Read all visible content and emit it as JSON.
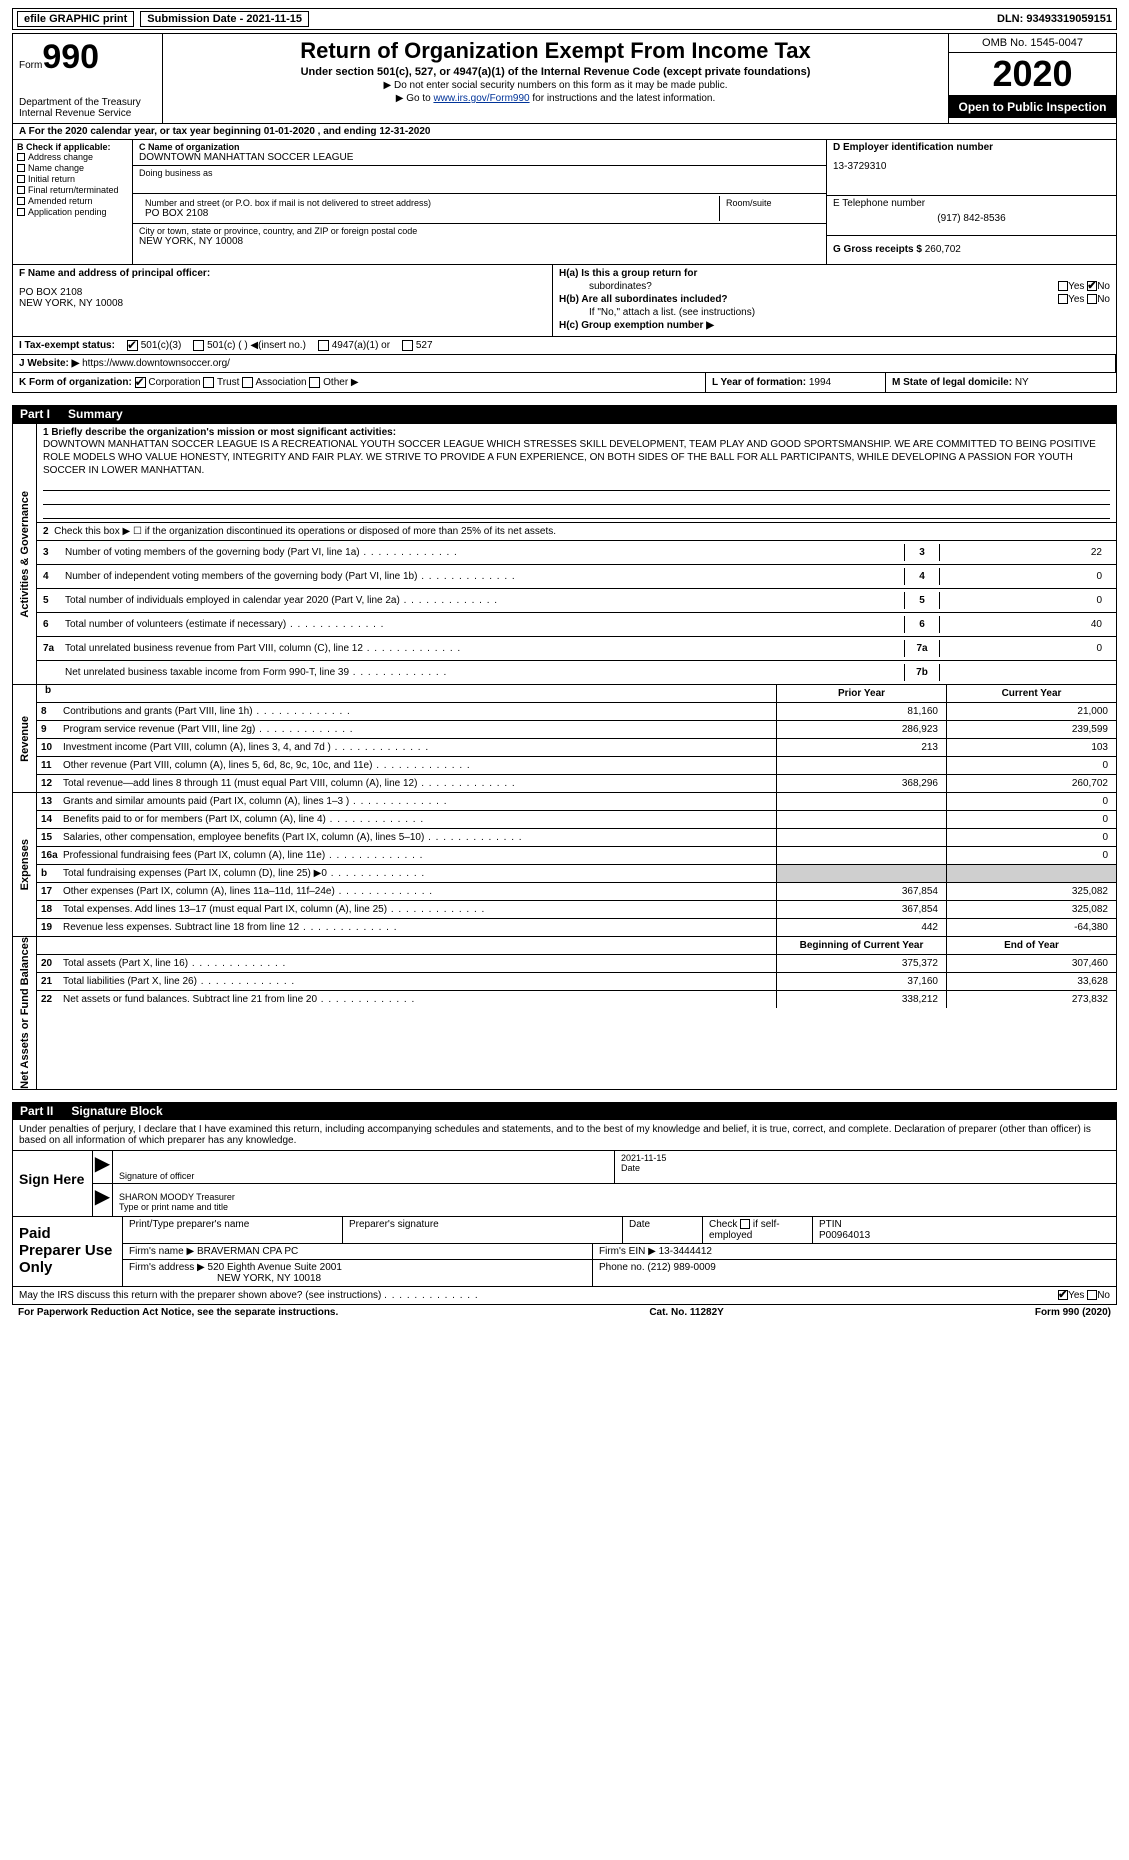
{
  "top": {
    "efile": "efile GRAPHIC print",
    "sub_label": "Submission Date - 2021-11-15",
    "dln": "DLN: 93493319059151"
  },
  "header": {
    "form": "Form",
    "form_num": "990",
    "dept": "Department of the Treasury\nInternal Revenue Service",
    "title": "Return of Organization Exempt From Income Tax",
    "sub": "Under section 501(c), 527, or 4947(a)(1) of the Internal Revenue Code (except private foundations)",
    "line1": "▶ Do not enter social security numbers on this form as it may be made public.",
    "line2_pre": "▶ Go to ",
    "line2_link": "www.irs.gov/Form990",
    "line2_post": " for instructions and the latest information.",
    "omb": "OMB No. 1545-0047",
    "year": "2020",
    "open": "Open to Public Inspection"
  },
  "row_a": "A For the 2020 calendar year, or tax year beginning 01-01-2020   , and ending 12-31-2020",
  "b": {
    "label": "B Check if applicable:",
    "items": [
      "Address change",
      "Name change",
      "Initial return",
      "Final return/terminated",
      "Amended return",
      "Application pending"
    ]
  },
  "c": {
    "name_label": "C Name of organization",
    "name": "DOWNTOWN MANHATTAN SOCCER LEAGUE",
    "dba_label": "Doing business as",
    "addr_label": "Number and street (or P.O. box if mail is not delivered to street address)",
    "addr": "PO BOX 2108",
    "room_label": "Room/suite",
    "city_label": "City or town, state or province, country, and ZIP or foreign postal code",
    "city": "NEW YORK, NY  10008"
  },
  "d": {
    "ein_label": "D Employer identification number",
    "ein": "13-3729310",
    "tel_label": "E Telephone number",
    "tel": "(917) 842-8536",
    "gross_label": "G Gross receipts $",
    "gross": "260,702"
  },
  "f": {
    "label": "F  Name and address of principal officer:",
    "line1": "PO BOX 2108",
    "line2": "NEW YORK, NY  10008"
  },
  "h": {
    "a_label": "H(a)  Is this a group return for",
    "a_sub": "subordinates?",
    "b_label": "H(b)  Are all subordinates included?",
    "b_note": "If \"No,\" attach a list. (see instructions)",
    "c_label": "H(c)  Group exemption number ▶"
  },
  "i": {
    "label": "I   Tax-exempt status:",
    "opt1": "501(c)(3)",
    "opt2": "501(c) (  ) ◀(insert no.)",
    "opt3": "4947(a)(1) or",
    "opt4": "527"
  },
  "j": {
    "label": "J  Website: ▶",
    "url": "https://www.downtownsoccer.org/"
  },
  "k": {
    "label": "K Form of organization:",
    "opts": [
      "Corporation",
      "Trust",
      "Association",
      "Other ▶"
    ],
    "l_label": "L Year of formation:",
    "l_val": "1994",
    "m_label": "M State of legal domicile:",
    "m_val": "NY"
  },
  "part1": {
    "label": "Part I",
    "title": "Summary"
  },
  "mission": "DOWNTOWN MANHATTAN SOCCER LEAGUE IS A RECREATIONAL YOUTH SOCCER LEAGUE WHICH STRESSES SKILL DEVELOPMENT, TEAM PLAY AND GOOD SPORTSMANSHIP. WE ARE COMMITTED TO BEING POSITIVE ROLE MODELS WHO VALUE HONESTY, INTEGRITY AND FAIR PLAY. WE STRIVE TO PROVIDE A FUN EXPERIENCE, ON BOTH SIDES OF THE BALL FOR ALL PARTICIPANTS, WHILE DEVELOPING A PASSION FOR YOUTH SOCCER IN LOWER MANHATTAN.",
  "gov": {
    "line1_label": "1  Briefly describe the organization's mission or most significant activities:",
    "line2": "Check this box ▶ ☐  if the organization discontinued its operations or disposed of more than 25% of its net assets.",
    "rows": [
      {
        "n": "3",
        "d": "Number of voting members of the governing body (Part VI, line 1a)",
        "r": "3",
        "v": "22"
      },
      {
        "n": "4",
        "d": "Number of independent voting members of the governing body (Part VI, line 1b)",
        "r": "4",
        "v": "0"
      },
      {
        "n": "5",
        "d": "Total number of individuals employed in calendar year 2020 (Part V, line 2a)",
        "r": "5",
        "v": "0"
      },
      {
        "n": "6",
        "d": "Total number of volunteers (estimate if necessary)",
        "r": "6",
        "v": "40"
      },
      {
        "n": "7a",
        "d": "Total unrelated business revenue from Part VIII, column (C), line 12",
        "r": "7a",
        "v": "0"
      },
      {
        "n": "",
        "d": "Net unrelated business taxable income from Form 990-T, line 39",
        "r": "7b",
        "v": ""
      }
    ]
  },
  "fin_head": {
    "prior": "Prior Year",
    "current": "Current Year",
    "begin": "Beginning of Current Year",
    "end": "End of Year"
  },
  "revenue": [
    {
      "n": "8",
      "d": "Contributions and grants (Part VIII, line 1h)",
      "p": "81,160",
      "c": "21,000"
    },
    {
      "n": "9",
      "d": "Program service revenue (Part VIII, line 2g)",
      "p": "286,923",
      "c": "239,599"
    },
    {
      "n": "10",
      "d": "Investment income (Part VIII, column (A), lines 3, 4, and 7d )",
      "p": "213",
      "c": "103"
    },
    {
      "n": "11",
      "d": "Other revenue (Part VIII, column (A), lines 5, 6d, 8c, 9c, 10c, and 11e)",
      "p": "",
      "c": "0"
    },
    {
      "n": "12",
      "d": "Total revenue—add lines 8 through 11 (must equal Part VIII, column (A), line 12)",
      "p": "368,296",
      "c": "260,702"
    }
  ],
  "expenses": [
    {
      "n": "13",
      "d": "Grants and similar amounts paid (Part IX, column (A), lines 1–3 )",
      "p": "",
      "c": "0"
    },
    {
      "n": "14",
      "d": "Benefits paid to or for members (Part IX, column (A), line 4)",
      "p": "",
      "c": "0"
    },
    {
      "n": "15",
      "d": "Salaries, other compensation, employee benefits (Part IX, column (A), lines 5–10)",
      "p": "",
      "c": "0"
    },
    {
      "n": "16a",
      "d": "Professional fundraising fees (Part IX, column (A), line 11e)",
      "p": "",
      "c": "0"
    },
    {
      "n": "b",
      "d": "Total fundraising expenses (Part IX, column (D), line 25) ▶0",
      "p": "shade",
      "c": "shade"
    },
    {
      "n": "17",
      "d": "Other expenses (Part IX, column (A), lines 11a–11d, 11f–24e)",
      "p": "367,854",
      "c": "325,082"
    },
    {
      "n": "18",
      "d": "Total expenses. Add lines 13–17 (must equal Part IX, column (A), line 25)",
      "p": "367,854",
      "c": "325,082"
    },
    {
      "n": "19",
      "d": "Revenue less expenses. Subtract line 18 from line 12",
      "p": "442",
      "c": "-64,380"
    }
  ],
  "netassets": [
    {
      "n": "20",
      "d": "Total assets (Part X, line 16)",
      "p": "375,372",
      "c": "307,460"
    },
    {
      "n": "21",
      "d": "Total liabilities (Part X, line 26)",
      "p": "37,160",
      "c": "33,628"
    },
    {
      "n": "22",
      "d": "Net assets or fund balances. Subtract line 21 from line 20",
      "p": "338,212",
      "c": "273,832"
    }
  ],
  "part2": {
    "label": "Part II",
    "title": "Signature Block"
  },
  "sig": {
    "declare": "Under penalties of perjury, I declare that I have examined this return, including accompanying schedules and statements, and to the best of my knowledge and belief, it is true, correct, and complete. Declaration of preparer (other than officer) is based on all information of which preparer has any knowledge.",
    "sign_here": "Sign Here",
    "sig_officer": "Signature of officer",
    "date_label": "Date",
    "date": "2021-11-15",
    "name": "SHARON MOODY Treasurer",
    "type_label": "Type or print name and title"
  },
  "prep": {
    "label": "Paid Preparer Use Only",
    "h1": "Print/Type preparer's name",
    "h2": "Preparer's signature",
    "h3": "Date",
    "h4_a": "Check",
    "h4_b": "if self-employed",
    "h5": "PTIN",
    "ptin": "P00964013",
    "firm_name_label": "Firm's name    ▶",
    "firm_name": "BRAVERMAN CPA PC",
    "firm_ein_label": "Firm's EIN ▶",
    "firm_ein": "13-3444412",
    "firm_addr_label": "Firm's address ▶",
    "firm_addr1": "520 Eighth Avenue Suite 2001",
    "firm_addr2": "NEW YORK, NY  10018",
    "phone_label": "Phone no.",
    "phone": "(212) 989-0009"
  },
  "discuss": "May the IRS discuss this return with the preparer shown above? (see instructions)",
  "footer": {
    "left": "For Paperwork Reduction Act Notice, see the separate instructions.",
    "mid": "Cat. No. 11282Y",
    "right": "Form 990 (2020)"
  },
  "vert": {
    "gov": "Activities & Governance",
    "rev": "Revenue",
    "exp": "Expenses",
    "net": "Net Assets or Fund Balances"
  }
}
